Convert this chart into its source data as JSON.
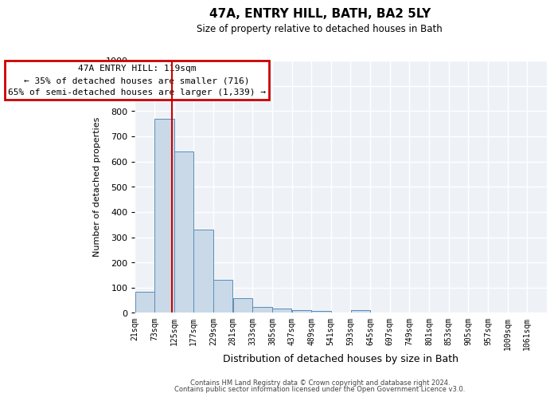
{
  "title": "47A, ENTRY HILL, BATH, BA2 5LY",
  "subtitle": "Size of property relative to detached houses in Bath",
  "xlabel": "Distribution of detached houses by size in Bath",
  "ylabel": "Number of detached properties",
  "bar_color": "#c9d9e8",
  "bar_edge_color": "#5b8db8",
  "background_color": "#eef2f7",
  "grid_color": "#ffffff",
  "categories": [
    "21sqm",
    "73sqm",
    "125sqm",
    "177sqm",
    "229sqm",
    "281sqm",
    "333sqm",
    "385sqm",
    "437sqm",
    "489sqm",
    "541sqm",
    "593sqm",
    "645sqm",
    "697sqm",
    "749sqm",
    "801sqm",
    "853sqm",
    "905sqm",
    "957sqm",
    "1009sqm",
    "1061sqm"
  ],
  "bin_edges": [
    21,
    73,
    125,
    177,
    229,
    281,
    333,
    385,
    437,
    489,
    541,
    593,
    645,
    697,
    749,
    801,
    853,
    905,
    957,
    1009,
    1061
  ],
  "values": [
    85,
    770,
    640,
    330,
    130,
    58,
    25,
    18,
    11,
    8,
    0,
    10,
    0,
    0,
    0,
    0,
    0,
    0,
    0,
    0,
    0
  ],
  "property_size": 119,
  "red_line_color": "#cc0000",
  "annotation_text": "47A ENTRY HILL: 119sqm\n← 35% of detached houses are smaller (716)\n65% of semi-detached houses are larger (1,339) →",
  "annotation_box_color": "#cc0000",
  "ylim": [
    0,
    1000
  ],
  "yticks": [
    0,
    100,
    200,
    300,
    400,
    500,
    600,
    700,
    800,
    900,
    1000
  ],
  "footer_line1": "Contains HM Land Registry data © Crown copyright and database right 2024.",
  "footer_line2": "Contains public sector information licensed under the Open Government Licence v3.0."
}
